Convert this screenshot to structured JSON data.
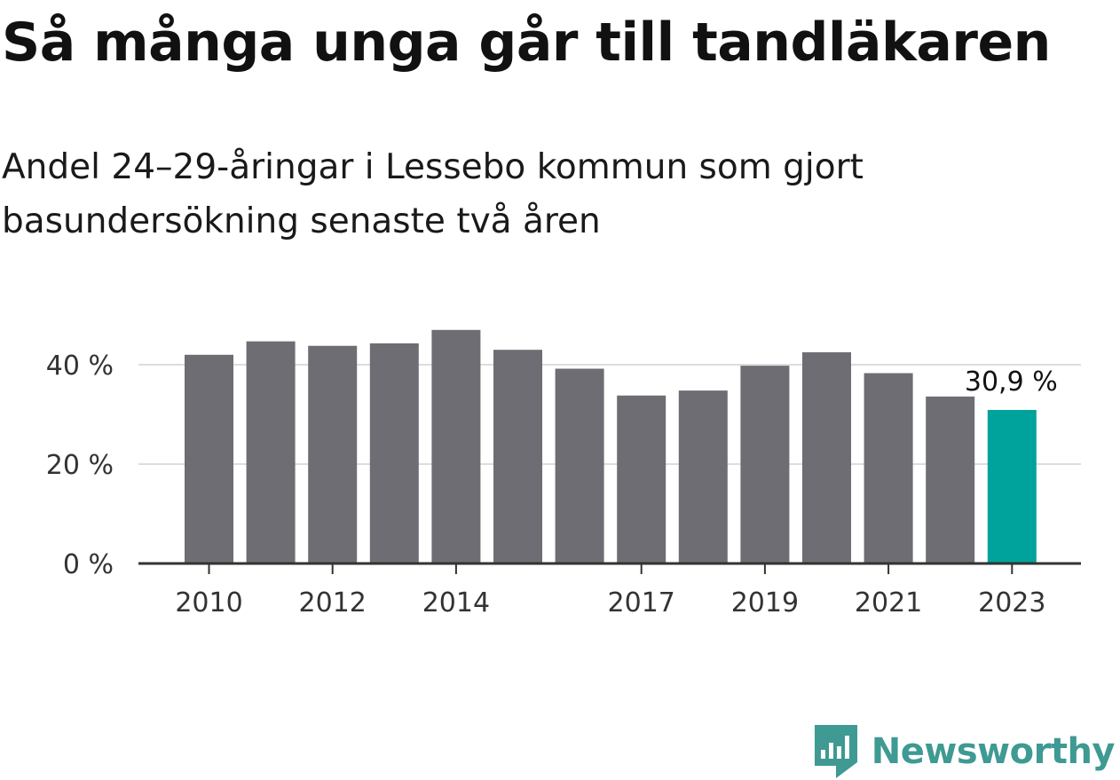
{
  "chart_data": {
    "type": "bar",
    "title": "Så många unga går till tandläkaren",
    "subtitle": "Andel 24–29-åringar i Lessebo kommun som gjort basundersökning senaste två åren",
    "categories": [
      "2010",
      "2011",
      "2012",
      "2013",
      "2014",
      "2015",
      "2016",
      "2017",
      "2018",
      "2019",
      "2020",
      "2021",
      "2022",
      "2023"
    ],
    "x_tick_labels": [
      "2010",
      "",
      "2012",
      "",
      "2014",
      "",
      "",
      "2017",
      "",
      "2019",
      "",
      "2021",
      "",
      "2023"
    ],
    "values": [
      42.0,
      44.7,
      43.8,
      44.3,
      47.0,
      43.0,
      39.2,
      33.8,
      34.8,
      39.8,
      42.5,
      38.3,
      33.6,
      30.9
    ],
    "y_ticks": [
      "0 %",
      "20 %",
      "40 %"
    ],
    "y_tick_values": [
      0,
      20,
      40
    ],
    "ylim": [
      0,
      50
    ],
    "grid": true,
    "highlight_index": 13,
    "highlight_label": "30,9 %",
    "colors": {
      "bar": "#6e6d73",
      "highlight": "#00a39b",
      "grid": "#dddddd",
      "baseline": "#333333"
    }
  },
  "branding": {
    "logo_text": "Newsworthy",
    "logo_icon": "newsworthy-speech-bubble-bar-chart-icon",
    "logo_color": "#3e9a93"
  }
}
